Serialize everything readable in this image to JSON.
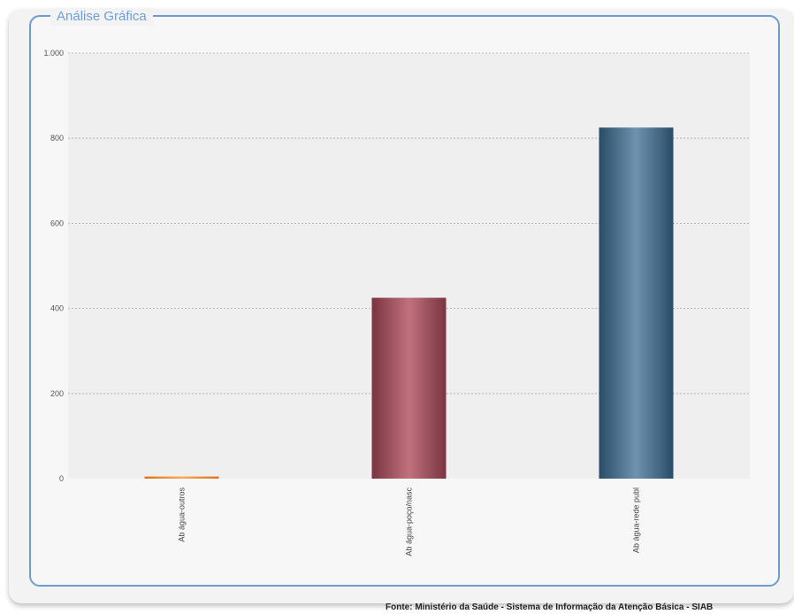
{
  "panel": {
    "title": "Análise Gráfica"
  },
  "footer": {
    "text": "Fonte: Ministério da Saúde - Sistema de Informação da Atenção Básica - SIAB"
  },
  "colors": {
    "bars": [
      "#f08a2c",
      "#9b4a55",
      "#3e6683"
    ],
    "plot_background": "#efefef",
    "grid": "#aaaaaa",
    "panel_border": "#6e9bd0"
  },
  "chart_data": {
    "type": "bar",
    "title": "",
    "xlabel": "",
    "ylabel": "",
    "categories": [
      "Ab água-outros",
      "Ab água-poço/nasc",
      "Ab água-rede publ"
    ],
    "values": [
      5,
      425,
      825
    ],
    "ylim": [
      0,
      1000
    ],
    "yticks": [
      0,
      200,
      400,
      600,
      800,
      1000
    ],
    "ytick_labels": [
      "0",
      "200",
      "400",
      "600",
      "800",
      "1.000"
    ],
    "grid": true,
    "legend": "none"
  }
}
